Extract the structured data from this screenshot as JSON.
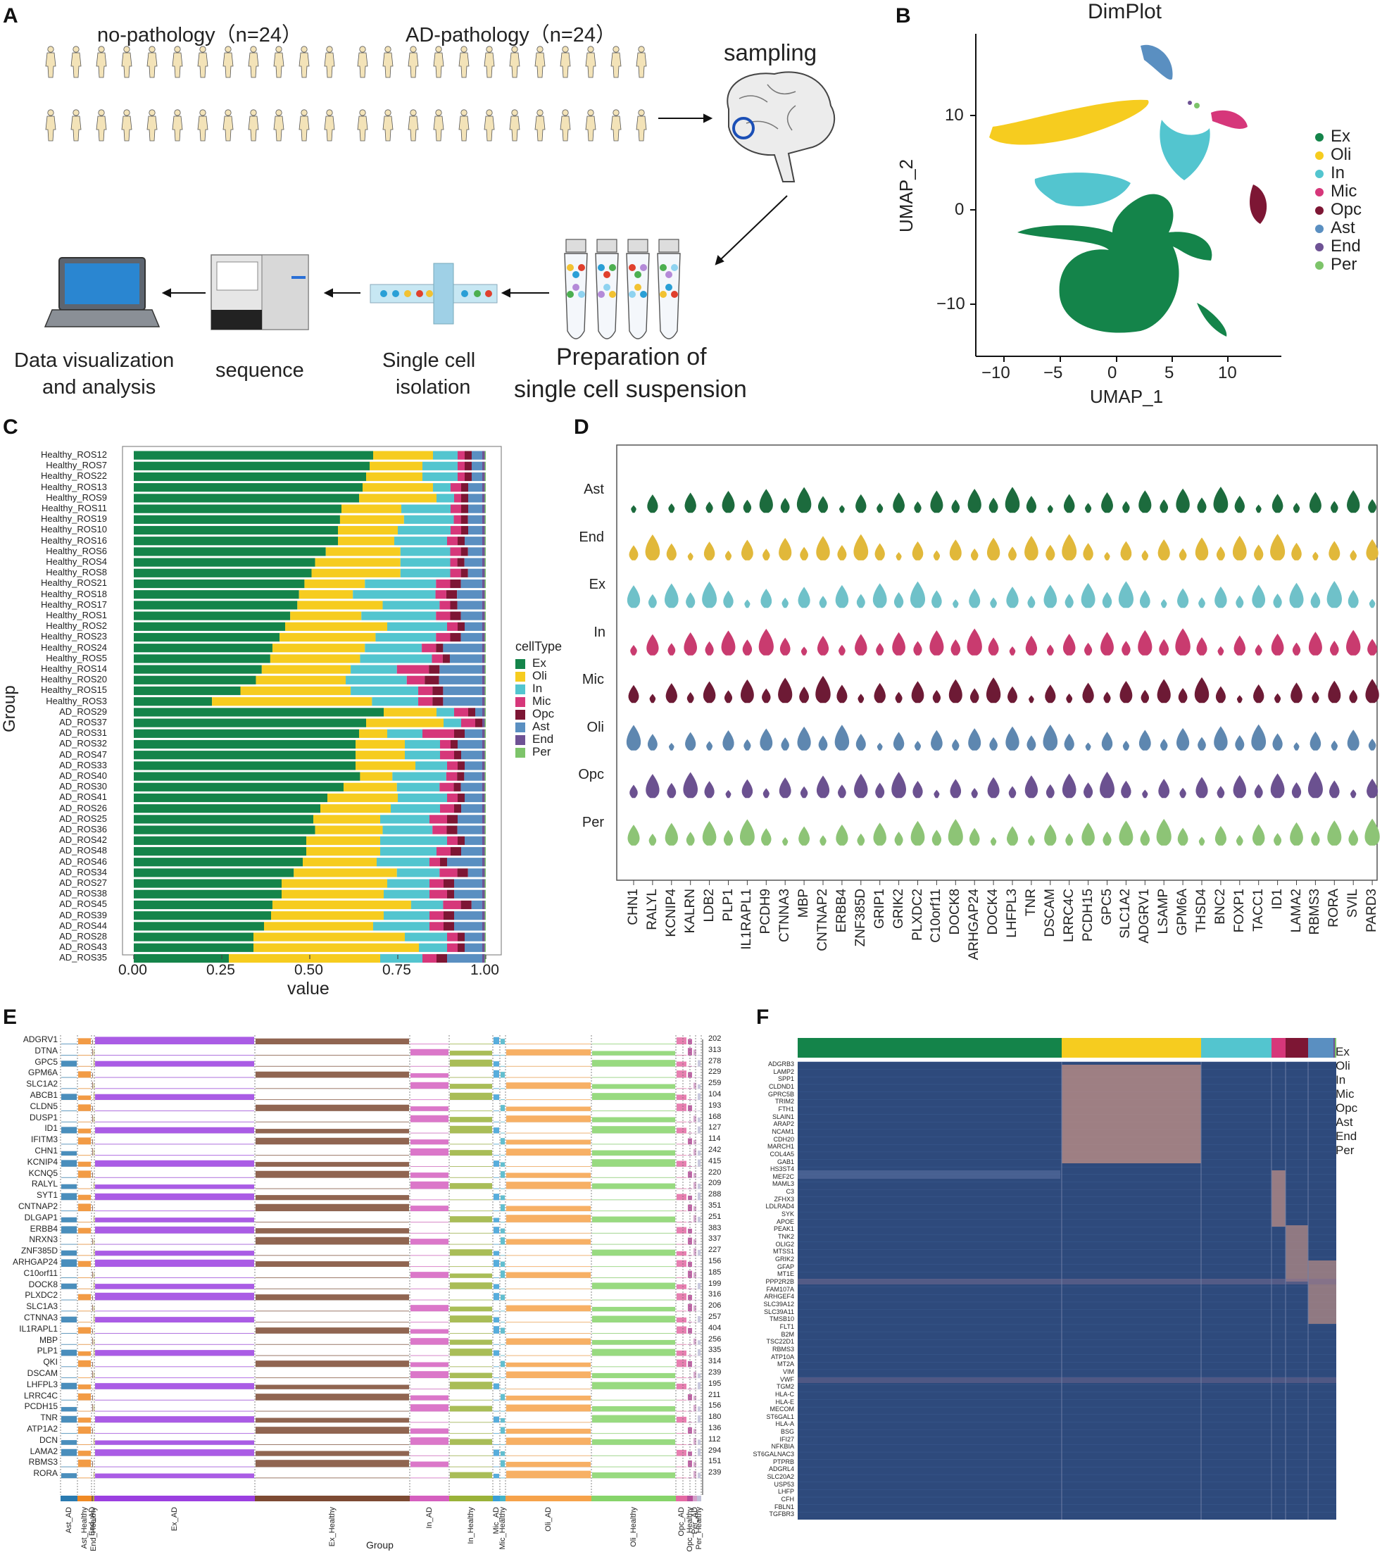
{
  "colors": {
    "Ex": "#14844a",
    "Oli": "#f6cc1f",
    "In": "#53c5cf",
    "Mic": "#d6377a",
    "Opc": "#7d1634",
    "Ast": "#5a8fc1",
    "End": "#6e5294",
    "Per": "#7dc46a",
    "heat_bg": "#2e4a7c",
    "heat_hi": "#d4a08a"
  },
  "panel_a": {
    "letter": "A",
    "group_no": "no-pathology（n=24）",
    "group_ad": "AD-pathology（n=24）",
    "sampling": "sampling",
    "prep": [
      "Preparation of",
      "single cell suspension"
    ],
    "isolation": [
      "Single cell",
      "isolation"
    ],
    "sequence": "sequence",
    "analysis": [
      "Data visualization",
      "and analysis"
    ]
  },
  "panel_b": {
    "letter": "B",
    "title": "DimPlot",
    "xlabel": "UMAP_1",
    "ylabel": "UMAP_2",
    "xticks": [
      "−10",
      "−5",
      "0",
      "5",
      "10"
    ],
    "yticks": [
      "10",
      "0",
      "−10"
    ],
    "legend": [
      "Ex",
      "Oli",
      "In",
      "Mic",
      "Opc",
      "Ast",
      "End",
      "Per"
    ]
  },
  "panel_c": {
    "letter": "C",
    "ylabel": "Group",
    "xlabel": "value",
    "xticks": [
      "0.00",
      "0.25",
      "0.50",
      "0.75",
      "1.00"
    ],
    "legend_title": "cellType",
    "legend": [
      "Ex",
      "Oli",
      "In",
      "Mic",
      "Opc",
      "Ast",
      "End",
      "Per"
    ]
  },
  "chart_data": {
    "type": "bar",
    "title": "",
    "xlabel": "value",
    "ylabel": "Group",
    "xlim": [
      0,
      1
    ],
    "orientation": "horizontal-stacked",
    "categories": [
      "Healthy_ROS12",
      "Healthy_ROS7",
      "Healthy_ROS22",
      "Healthy_ROS13",
      "Healthy_ROS9",
      "Healthy_ROS11",
      "Healthy_ROS19",
      "Healthy_ROS10",
      "Healthy_ROS16",
      "Healthy_ROS6",
      "Healthy_ROS4",
      "Healthy_ROS8",
      "Healthy_ROS21",
      "Healthy_ROS18",
      "Healthy_ROS17",
      "Healthy_ROS1",
      "Healthy_ROS2",
      "Healthy_ROS23",
      "Healthy_ROS24",
      "Healthy_ROS5",
      "Healthy_ROS14",
      "Healthy_ROS20",
      "Healthy_ROS15",
      "Healthy_ROS3",
      "AD_ROS29",
      "AD_ROS37",
      "AD_ROS31",
      "AD_ROS32",
      "AD_ROS47",
      "AD_ROS33",
      "AD_ROS40",
      "AD_ROS30",
      "AD_ROS41",
      "AD_ROS26",
      "AD_ROS25",
      "AD_ROS36",
      "AD_ROS42",
      "AD_ROS48",
      "AD_ROS46",
      "AD_ROS34",
      "AD_ROS27",
      "AD_ROS38",
      "AD_ROS45",
      "AD_ROS39",
      "AD_ROS44",
      "AD_ROS28",
      "AD_ROS43",
      "AD_ROS35"
    ],
    "ex_values": [
      0.68,
      0.67,
      0.66,
      0.65,
      0.64,
      0.59,
      0.58,
      0.58,
      0.58,
      0.54,
      0.51,
      0.5,
      0.48,
      0.46,
      0.46,
      0.44,
      0.43,
      0.41,
      0.39,
      0.38,
      0.36,
      0.34,
      0.3,
      0.22,
      0.71,
      0.66,
      0.64,
      0.63,
      0.63,
      0.63,
      0.63,
      0.59,
      0.55,
      0.53,
      0.51,
      0.51,
      0.49,
      0.49,
      0.48,
      0.45,
      0.42,
      0.42,
      0.39,
      0.39,
      0.37,
      0.34,
      0.34,
      0.27
    ],
    "oli_values": [
      0.17,
      0.15,
      0.16,
      0.2,
      0.22,
      0.17,
      0.18,
      0.17,
      0.16,
      0.21,
      0.24,
      0.25,
      0.17,
      0.15,
      0.24,
      0.2,
      0.29,
      0.27,
      0.26,
      0.25,
      0.25,
      0.25,
      0.31,
      0.45,
      0.15,
      0.22,
      0.08,
      0.14,
      0.14,
      0.17,
      0.09,
      0.15,
      0.2,
      0.2,
      0.19,
      0.19,
      0.21,
      0.21,
      0.21,
      0.29,
      0.3,
      0.29,
      0.39,
      0.32,
      0.31,
      0.43,
      0.47,
      0.43
    ],
    "in_values": [
      0.07,
      0.1,
      0.1,
      0.05,
      0.05,
      0.14,
      0.14,
      0.15,
      0.15,
      0.14,
      0.14,
      0.14,
      0.2,
      0.23,
      0.16,
      0.21,
      0.17,
      0.17,
      0.16,
      0.2,
      0.13,
      0.17,
      0.19,
      0.13,
      0.05,
      0.05,
      0.1,
      0.1,
      0.1,
      0.09,
      0.15,
      0.12,
      0.14,
      0.14,
      0.14,
      0.14,
      0.19,
      0.16,
      0.15,
      0.12,
      0.12,
      0.13,
      0.09,
      0.13,
      0.16,
      0.12,
      0.08,
      0.12
    ],
    "mic_values": [
      0.02,
      0.02,
      0.02,
      0.03,
      0.02,
      0.03,
      0.02,
      0.03,
      0.03,
      0.03,
      0.02,
      0.03,
      0.04,
      0.03,
      0.03,
      0.04,
      0.03,
      0.04,
      0.04,
      0.03,
      0.09,
      0.05,
      0.04,
      0.04,
      0.04,
      0.04,
      0.09,
      0.03,
      0.04,
      0.03,
      0.03,
      0.04,
      0.03,
      0.04,
      0.05,
      0.04,
      0.03,
      0.04,
      0.03,
      0.05,
      0.04,
      0.05,
      0.05,
      0.04,
      0.04,
      0.03,
      0.03,
      0.04
    ],
    "opc_values": [
      0.02,
      0.02,
      0.02,
      0.02,
      0.02,
      0.02,
      0.02,
      0.02,
      0.02,
      0.02,
      0.02,
      0.02,
      0.03,
      0.03,
      0.02,
      0.03,
      0.02,
      0.03,
      0.02,
      0.02,
      0.03,
      0.04,
      0.03,
      0.03,
      0.02,
      0.02,
      0.03,
      0.02,
      0.02,
      0.02,
      0.02,
      0.02,
      0.02,
      0.02,
      0.03,
      0.03,
      0.02,
      0.03,
      0.02,
      0.03,
      0.03,
      0.02,
      0.03,
      0.03,
      0.03,
      0.02,
      0.02,
      0.03
    ],
    "ast_values": [
      0.03,
      0.03,
      0.03,
      0.04,
      0.04,
      0.04,
      0.04,
      0.04,
      0.05,
      0.04,
      0.05,
      0.04,
      0.06,
      0.07,
      0.07,
      0.06,
      0.05,
      0.06,
      0.11,
      0.09,
      0.12,
      0.12,
      0.11,
      0.11,
      0.02,
      0.0,
      0.05,
      0.07,
      0.06,
      0.05,
      0.05,
      0.06,
      0.05,
      0.06,
      0.07,
      0.07,
      0.05,
      0.06,
      0.1,
      0.04,
      0.08,
      0.08,
      0.03,
      0.08,
      0.08,
      0.05,
      0.05,
      0.1
    ],
    "end_values": [
      0.007,
      0.007,
      0.007,
      0.007,
      0.007,
      0.007,
      0.007,
      0.007,
      0.007,
      0.007,
      0.007,
      0.007,
      0.007,
      0.007,
      0.007,
      0.007,
      0.007,
      0.007,
      0.007,
      0.007,
      0.007,
      0.007,
      0.007,
      0.007,
      0.007,
      0.007,
      0.007,
      0.007,
      0.007,
      0.007,
      0.007,
      0.007,
      0.007,
      0.007,
      0.007,
      0.007,
      0.007,
      0.007,
      0.007,
      0.007,
      0.007,
      0.007,
      0.007,
      0.007,
      0.007,
      0.007,
      0.007,
      0.007
    ],
    "per_values": [
      0.003,
      0.003,
      0.003,
      0.003,
      0.003,
      0.003,
      0.003,
      0.003,
      0.003,
      0.003,
      0.003,
      0.003,
      0.003,
      0.003,
      0.003,
      0.003,
      0.003,
      0.003,
      0.003,
      0.003,
      0.003,
      0.003,
      0.003,
      0.003,
      0.003,
      0.003,
      0.003,
      0.003,
      0.003,
      0.003,
      0.003,
      0.003,
      0.003,
      0.003,
      0.003,
      0.003,
      0.003,
      0.003,
      0.003,
      0.003,
      0.003,
      0.003,
      0.003,
      0.003,
      0.003,
      0.003,
      0.003,
      0.003
    ]
  },
  "panel_d": {
    "letter": "D",
    "rows": [
      "Ast",
      "End",
      "Ex",
      "In",
      "Mic",
      "Oli",
      "Opc",
      "Per"
    ],
    "genes": [
      "CHN1",
      "RALYL",
      "KCNIP4",
      "KALRN",
      "LDB2",
      "PLP1",
      "IL1RAPL1",
      "PCDH9",
      "CTNNA3",
      "MBP",
      "CNTNAP2",
      "ERBB4",
      "ZNF385D",
      "GRIP1",
      "GRIK2",
      "PLXDC2",
      "C10orf11",
      "DOCK8",
      "ARHGAP24",
      "DOCK4",
      "LHFPL3",
      "TNR",
      "DSCAM",
      "LRRC4C",
      "PCDH15",
      "GPC5",
      "SLC1A2",
      "ADGRV1",
      "LSAMP",
      "GPM6A",
      "THSD4",
      "BNC2",
      "FOXP1",
      "TACC1",
      "ID1",
      "LAMA2",
      "RBMS3",
      "RORA",
      "SVIL",
      "PARD3"
    ]
  },
  "panel_e": {
    "letter": "E",
    "xlabel": "Group",
    "genes": [
      "ADGRV1",
      "DTNA",
      "GPC5",
      "GPM6A",
      "SLC1A2",
      "ABCB1",
      "CLDN5",
      "DUSP1",
      "ID1",
      "IFITM3",
      "CHN1",
      "KCNIP4",
      "KCNQ5",
      "RALYL",
      "SYT1",
      "CNTNAP2",
      "DLGAP1",
      "ERBB4",
      "NRXN3",
      "ZNF385D",
      "ARHGAP24",
      "C10orf11",
      "DOCK8",
      "PLXDC2",
      "SLC1A3",
      "CTNNA3",
      "IL1RAPL1",
      "MBP",
      "PLP1",
      "QKI",
      "DSCAM",
      "LHFPL3",
      "LRRC4C",
      "PCDH15",
      "TNR",
      "ATP1A2",
      "DCN",
      "LAMA2",
      "RBMS3",
      "RORA"
    ],
    "values": [
      "202",
      "313",
      "278",
      "229",
      "259",
      "104",
      "193",
      "168",
      "127",
      "114",
      "242",
      "415",
      "220",
      "209",
      "288",
      "351",
      "251",
      "383",
      "337",
      "227",
      "156",
      "185",
      "199",
      "316",
      "206",
      "257",
      "404",
      "256",
      "335",
      "314",
      "239",
      "195",
      "211",
      "156",
      "180",
      "136",
      "112",
      "294",
      "151",
      "239"
    ],
    "groups": [
      "Ast_AD",
      "Ast_Healthy",
      "End_AD",
      "End_Healthy",
      "Ex_AD",
      "Ex_Healthy",
      "In_AD",
      "In_Healthy",
      "Mic_AD",
      "Mic_Healthy",
      "Oli_AD",
      "Oli_Healthy",
      "Opc_AD",
      "Opc_Healthy",
      "Per_AD",
      "Per_Healthy"
    ]
  },
  "panel_f": {
    "letter": "F",
    "genes": [
      "ADGRB3",
      "LAMP2",
      "SPP1",
      "CLDND1",
      "GPRC5B",
      "TRIM2",
      "FTH1",
      "SLAIN1",
      "ARAP2",
      "NCAM1",
      "CDH20",
      "MARCH1",
      "COL4A5",
      "GAB1",
      "HS3ST4",
      "MEF2C",
      "MAML3",
      "C3",
      "ZFHX3",
      "LDLRAD4",
      "SYK",
      "APOE",
      "PEAK1",
      "TNK2",
      "OLIG2",
      "MTSS1",
      "GRIK2",
      "GFAP",
      "MT1E",
      "PPP2R2B",
      "FAM107A",
      "ARHGEF4",
      "SLC39A12",
      "SLC39A11",
      "TMSB10",
      "FLT1",
      "B2M",
      "TSC22D1",
      "RBMS3",
      "ATP10A",
      "MT2A",
      "VIM",
      "VWF",
      "TGM2",
      "HLA-C",
      "HLA-E",
      "MECOM",
      "ST6GAL1",
      "HLA-A",
      "BSG",
      "IFI27",
      "NFKBIA",
      "ST6GALNAC3",
      "PTPRB",
      "ADGRL4",
      "SLC20A2",
      "USP53",
      "LHFP",
      "CFH",
      "FBLN1",
      "TGFBR3"
    ],
    "legend": [
      "Ex",
      "Oli",
      "In",
      "Mic",
      "Opc",
      "Ast",
      "End",
      "Per"
    ]
  }
}
